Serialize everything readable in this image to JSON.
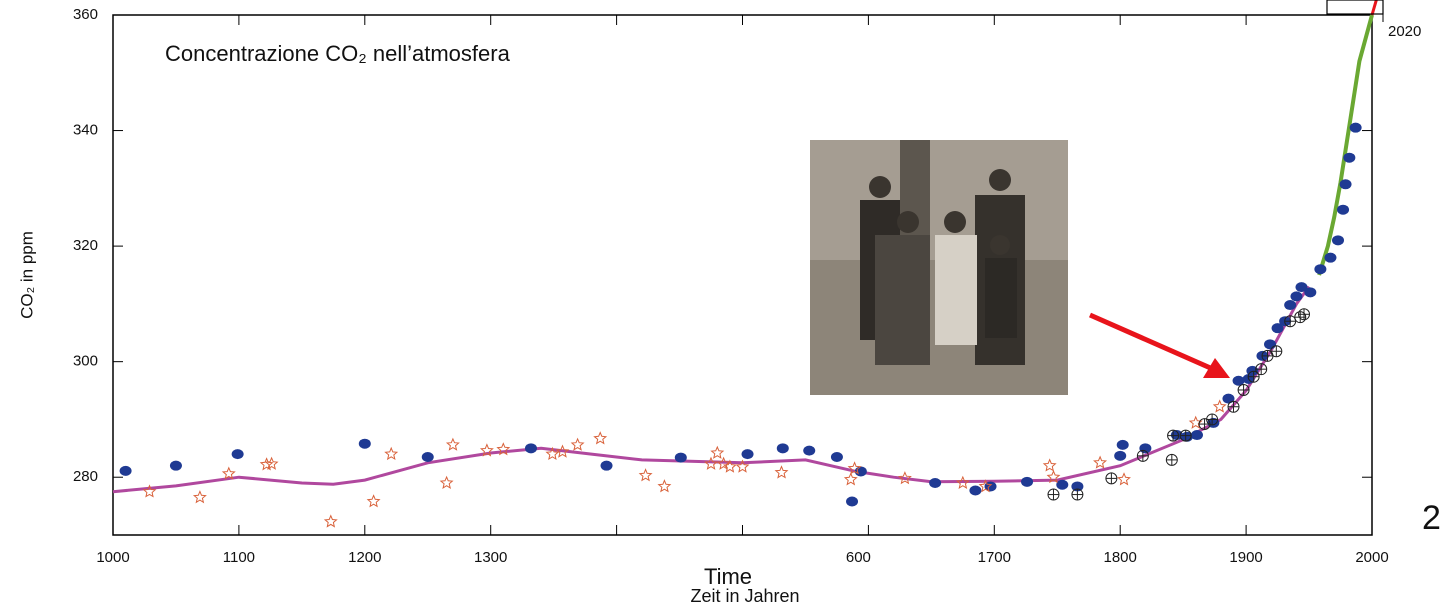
{
  "chart_data": {
    "type": "scatter",
    "title": "Concentrazione CO₂ nell’atmosfera",
    "y_label": "CO₂ in ppm",
    "x_label": "Zeit in Jahren",
    "annotations": [
      "Time",
      "2020",
      "2"
    ],
    "xlim": [
      1000,
      2000
    ],
    "ylim": [
      270,
      360
    ],
    "xticks": [
      1000,
      1100,
      1200,
      1300,
      {
        "value": 1400,
        "label": null
      },
      {
        "value": 1500,
        "label": null
      },
      {
        "value": 1600,
        "label": "600"
      },
      1700,
      1800,
      1900,
      2000
    ],
    "yticks": [
      280,
      300,
      320,
      340,
      360
    ],
    "series": [
      {
        "marker": "dot",
        "color": "#1f3a93",
        "x": [
          1010,
          1050,
          1099,
          1200,
          1250,
          1332,
          1392,
          1451,
          1504,
          1532,
          1553,
          1575,
          1587,
          1594,
          1653,
          1685,
          1697,
          1726,
          1754,
          1766,
          1800,
          1802,
          1820,
          1845,
          1853,
          1861,
          1874,
          1886,
          1894,
          1902,
          1905,
          1913,
          1919,
          1925,
          1931,
          1935,
          1940,
          1944,
          1951,
          1959,
          1967,
          1973,
          1977,
          1979,
          1982,
          1987
        ],
        "values": [
          281.1,
          282,
          284,
          285.8,
          283.5,
          285,
          282,
          283.4,
          284,
          285,
          284.6,
          283.5,
          275.8,
          281,
          279,
          277.7,
          278.4,
          279.2,
          278.7,
          278.4,
          283.7,
          285.6,
          285,
          287.3,
          287,
          287.3,
          289.4,
          293.6,
          296.7,
          297,
          298.4,
          301,
          303,
          305.8,
          307,
          309.8,
          311.3,
          312.9,
          312,
          316,
          318,
          321,
          326.3,
          330.7,
          335.3,
          340.5
        ]
      },
      {
        "marker": "star",
        "color": "#d9623b",
        "x": [
          1029,
          1069,
          1092,
          1122,
          1126,
          1173,
          1207,
          1221,
          1265,
          1270,
          1297,
          1310,
          1349,
          1357,
          1369,
          1387,
          1423,
          1438,
          1475,
          1480,
          1485,
          1490,
          1500,
          1531,
          1586,
          1589,
          1629,
          1675,
          1693,
          1744,
          1747,
          1784,
          1803,
          1860,
          1879
        ],
        "values": [
          277.5,
          276.5,
          280.6,
          282.2,
          282.3,
          272.3,
          275.8,
          284,
          279,
          285.6,
          284.6,
          284.8,
          284,
          284.4,
          285.6,
          286.7,
          280.3,
          278.4,
          282.3,
          284.2,
          282.3,
          281.8,
          281.8,
          280.8,
          279.6,
          281.5,
          279.8,
          279,
          278.4,
          282,
          280,
          282.5,
          279.6,
          289.4,
          292.2
        ]
      },
      {
        "marker": "circle-cross",
        "color": "#222222",
        "x": [
          1747,
          1766,
          1793,
          1818,
          1841,
          1842,
          1852,
          1867,
          1873,
          1890,
          1898,
          1906,
          1912,
          1917,
          1924,
          1935,
          1943,
          1946
        ],
        "values": [
          277,
          277,
          279.8,
          283.7,
          283,
          287.2,
          287.2,
          289.2,
          290,
          292.2,
          295.1,
          297.4,
          298.7,
          301,
          301.8,
          307,
          307.7,
          308.2
        ]
      },
      {
        "marker": "line",
        "color": "#b0489e",
        "x": [
          1000,
          1050,
          1100,
          1150,
          1175,
          1200,
          1250,
          1300,
          1340,
          1380,
          1420,
          1500,
          1550,
          1590,
          1620,
          1650,
          1700,
          1750,
          1800,
          1850,
          1880,
          1900,
          1920,
          1940,
          1950
        ],
        "values": [
          277.5,
          278.5,
          280,
          279,
          278.8,
          279.5,
          282.5,
          284.2,
          285,
          284,
          283,
          282.5,
          283,
          281,
          280,
          279.2,
          279.3,
          279.5,
          282,
          286.5,
          290,
          295,
          302,
          310,
          313
        ]
      },
      {
        "marker": "line",
        "color": "#6aa832",
        "x": [
          1958,
          1965,
          1970,
          1975,
          1980,
          1985,
          1990,
          1995,
          2000
        ],
        "values": [
          315,
          320,
          325,
          331,
          338,
          345,
          352,
          356,
          360
        ]
      },
      {
        "marker": "line",
        "color": "#e8141b",
        "x": [
          2000,
          2004
        ],
        "values": [
          360,
          363
        ]
      }
    ]
  }
}
